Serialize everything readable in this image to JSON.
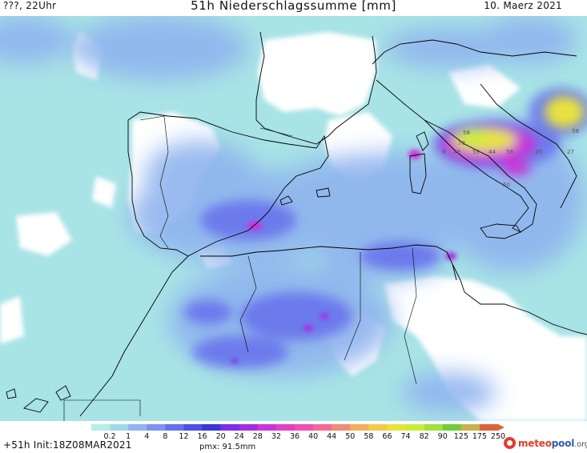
{
  "header": {
    "left": "???, 22Uhr",
    "title": "51h Niederschlagssumme [mm]",
    "right": "10. Maerz 2021"
  },
  "footer": {
    "run_label": "+51h  Init:18Z08MAR2021",
    "pmx": "pmx: 91.5mm"
  },
  "logo": {
    "part1": "meteo",
    "part2": "pool",
    "part3": ".org"
  },
  "legend": {
    "labels": [
      "0.2",
      "1",
      "4",
      "8",
      "12",
      "16",
      "20",
      "24",
      "28",
      "32",
      "36",
      "40",
      "44",
      "50",
      "58",
      "66",
      "74",
      "82",
      "90",
      "125",
      "175",
      "250"
    ],
    "colors": [
      "#b7ede8",
      "#9fd9ea",
      "#8fb4ee",
      "#7d93f2",
      "#6670ec",
      "#4c4fe2",
      "#3b37d3",
      "#7c2fe5",
      "#a42de0",
      "#c936d8",
      "#e23fc8",
      "#f04eb0",
      "#f56a93",
      "#f38a76",
      "#f5ac5c",
      "#f3cb48",
      "#e8e23c",
      "#c9ee3a",
      "#9fe23a",
      "#70cd38",
      "#c7b24a",
      "#e0603a"
    ]
  },
  "map": {
    "local_values": [
      "58",
      "48",
      "59",
      "44",
      "58",
      "35",
      "70",
      "50",
      "58",
      "27",
      "8"
    ]
  }
}
